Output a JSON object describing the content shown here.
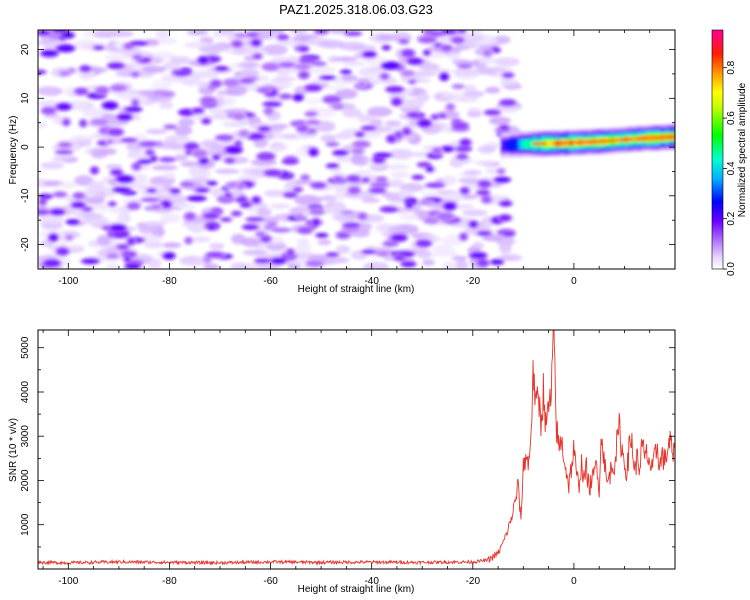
{
  "chart_data": [
    {
      "type": "heatmap",
      "title": "PAZ1.2025.318.06.03.G23",
      "xlabel": "Height of straight line (km)",
      "ylabel": "Frequency (Hz)",
      "xlim": [
        -106,
        20
      ],
      "ylim": [
        -25,
        24
      ],
      "xticks": [
        -100,
        -80,
        -60,
        -40,
        -20,
        0
      ],
      "yticks": [
        -20,
        -10,
        0,
        10,
        20
      ],
      "colorbar": {
        "label": "Normalized spectral amplitude",
        "range": [
          0,
          0.95
        ],
        "ticks": [
          0.0,
          0.2,
          0.4,
          0.6,
          0.8
        ],
        "colormap": [
          "#ffffff",
          "#d9c2ff",
          "#9a30ff",
          "#0000ff",
          "#00ffff",
          "#00ff00",
          "#ffff00",
          "#ff8000",
          "#ff0000",
          "#ff00c8"
        ]
      },
      "noise_region": {
        "x_range": [
          -106,
          -12
        ],
        "frequency_range": [
          -25,
          24
        ],
        "amplitude_range": [
          0.02,
          0.2
        ]
      },
      "signal_region": {
        "x": [
          -14,
          -10,
          -6,
          -2,
          2,
          6,
          10,
          14,
          18,
          20
        ],
        "center_frequency": [
          0.3,
          0.6,
          0.7,
          0.8,
          1.0,
          1.2,
          1.5,
          1.8,
          2.0,
          2.1
        ],
        "peak_amplitude": [
          0.35,
          0.6,
          0.85,
          0.9,
          0.85,
          0.9,
          0.8,
          0.85,
          0.9,
          0.85
        ]
      }
    },
    {
      "type": "line",
      "xlabel": "Height of straight line (km)",
      "ylabel": "SNR (10 * v/v)",
      "xlim": [
        -106,
        20
      ],
      "ylim": [
        0,
        5400
      ],
      "xticks": [
        -100,
        -80,
        -60,
        -40,
        -20,
        0
      ],
      "yticks": [
        1000,
        2000,
        3000,
        4000,
        5000
      ],
      "color": "#e8332a",
      "series": [
        {
          "x": [
            -106,
            -100,
            -90,
            -80,
            -70,
            -60,
            -50,
            -40,
            -30,
            -20,
            -17,
            -15,
            -14,
            -13,
            -12,
            -11,
            -10.5,
            -10,
            -9.5,
            -9,
            -8.5,
            -8,
            -7.5,
            -7,
            -6.5,
            -6,
            -5.5,
            -5,
            -4.5,
            -4,
            -3.8,
            -3.5,
            -3,
            -2.5,
            -2,
            -1.5,
            -1,
            -0.5,
            0,
            0.5,
            1,
            1.5,
            2,
            2.5,
            3,
            3.5,
            4,
            4.5,
            5,
            5.5,
            6,
            6.5,
            7,
            7.5,
            8,
            8.5,
            9,
            9.5,
            10,
            10.5,
            11,
            11.5,
            12,
            12.5,
            13,
            13.5,
            14,
            14.5,
            15,
            15.5,
            16,
            16.5,
            17,
            17.5,
            18,
            18.5,
            19,
            19.5,
            20
          ],
          "y": [
            150,
            140,
            160,
            150,
            140,
            160,
            150,
            155,
            150,
            160,
            200,
            350,
            600,
            900,
            1300,
            1900,
            1100,
            2300,
            2600,
            2300,
            3100,
            4500,
            3600,
            3900,
            3300,
            4100,
            3100,
            3700,
            3800,
            5350,
            4700,
            3300,
            2700,
            2900,
            2600,
            2200,
            1900,
            2300,
            2700,
            2100,
            1900,
            2400,
            2000,
            2300,
            1800,
            2000,
            2100,
            2500,
            1800,
            3100,
            2500,
            1900,
            2100,
            2300,
            2400,
            2800,
            3200,
            2700,
            2400,
            2200,
            2800,
            2900,
            2200,
            2500,
            2300,
            2800,
            2500,
            2600,
            2400,
            2200,
            2500,
            2800,
            2300,
            2600,
            2400,
            2700,
            2900,
            2600,
            2500
          ]
        }
      ]
    }
  ]
}
